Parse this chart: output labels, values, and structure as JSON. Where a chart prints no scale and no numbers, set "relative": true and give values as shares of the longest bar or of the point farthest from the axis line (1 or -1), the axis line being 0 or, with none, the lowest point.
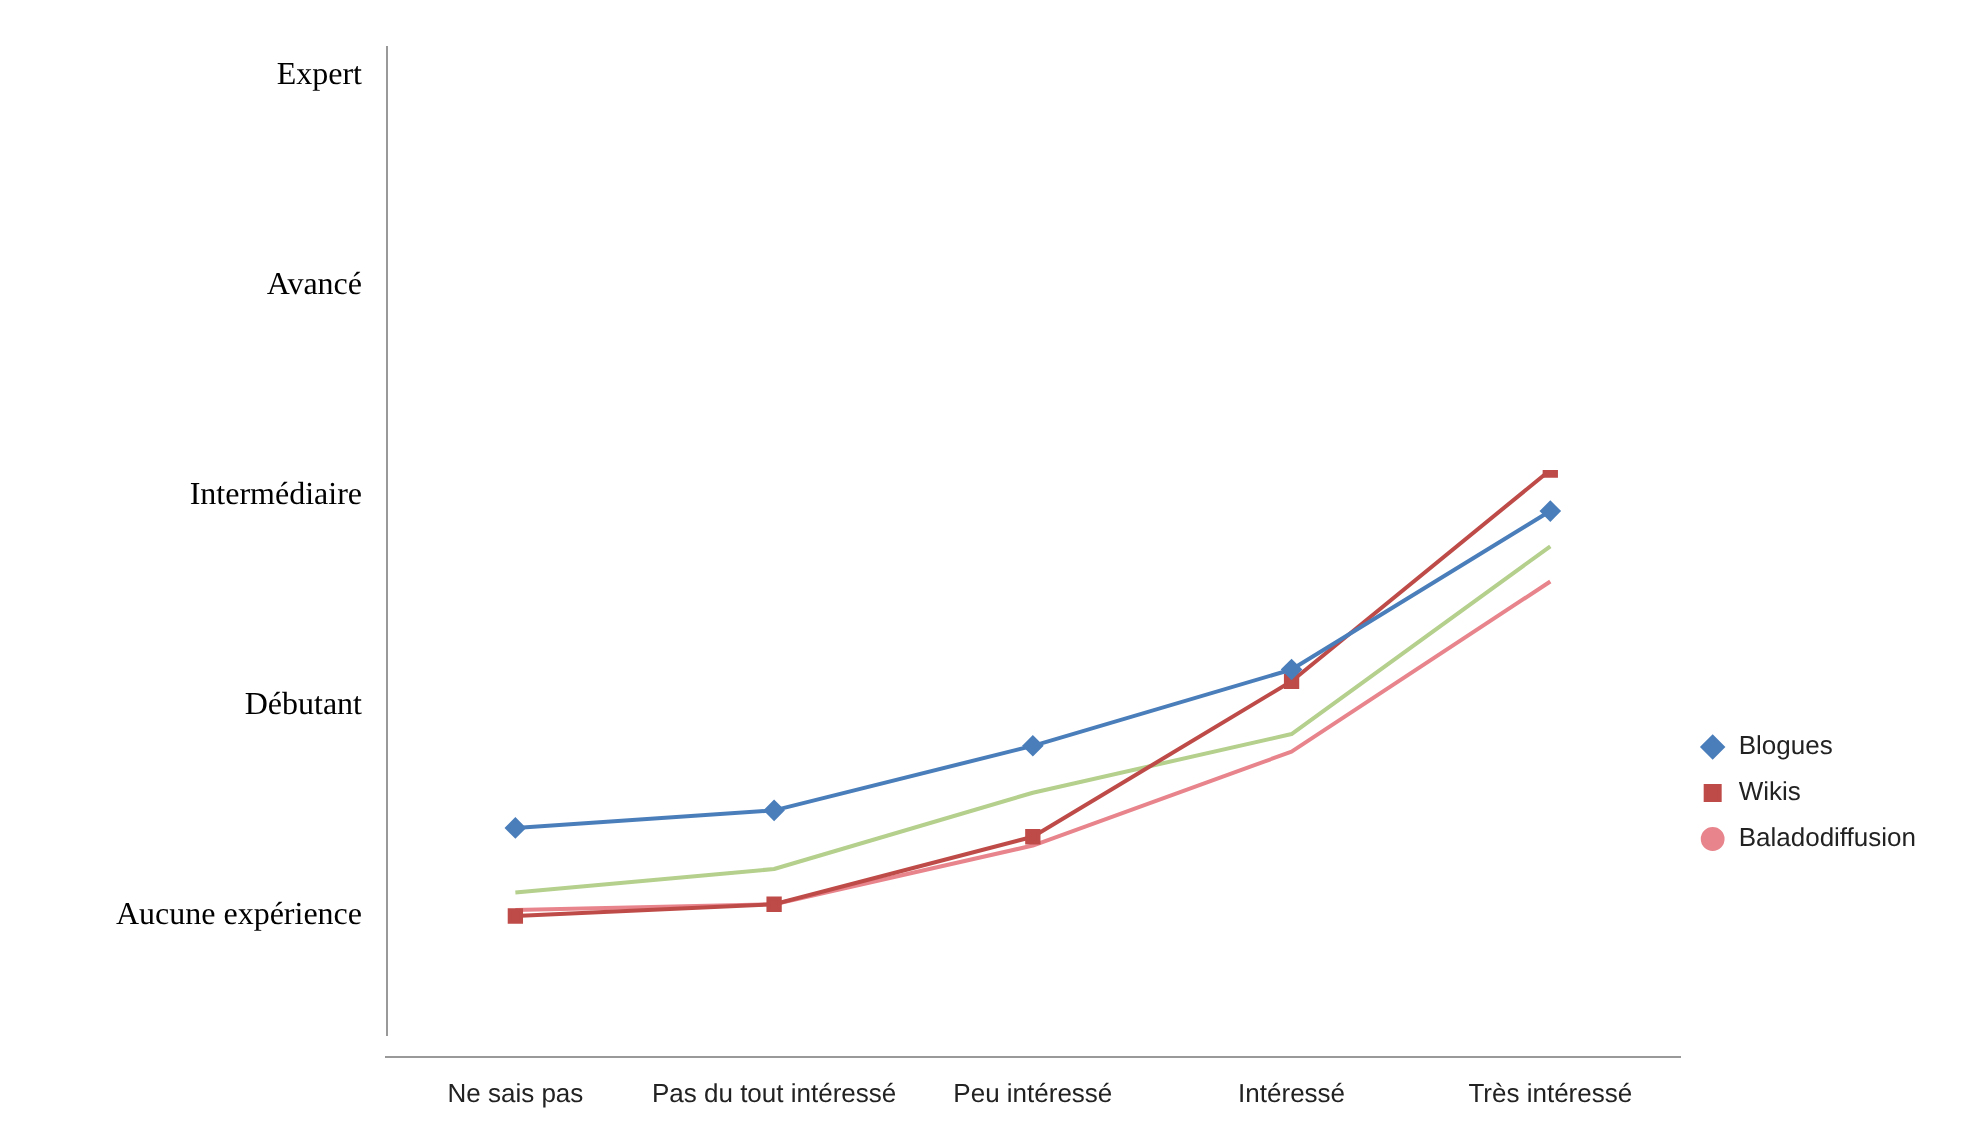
{
  "chart_data": {
    "type": "line",
    "relative": true,
    "categories": [
      "Ne sais pas",
      "Pas du tout intéressé",
      "Peu intéressé",
      "Intéressé",
      "Très intéressé"
    ],
    "series": [
      {
        "name": "Blogues",
        "color": "#4a7ebb",
        "marker": "diamond",
        "values": [
          0.39,
          0.42,
          0.53,
          0.66,
          0.93
        ]
      },
      {
        "name": "Wikis",
        "color": "#be4b48",
        "marker": "square",
        "values": [
          0.24,
          0.26,
          0.375,
          0.64,
          1
        ]
      },
      {
        "name": "Baladodiffusion",
        "color": "#e8848c",
        "marker": "none",
        "values": [
          0.25,
          0.26,
          0.36,
          0.52,
          0.81
        ]
      },
      {
        "color": "#b4d08c",
        "marker": "none",
        "values": [
          0.28,
          0.32,
          0.45,
          0.55,
          0.87
        ]
      }
    ],
    "annotations": [
      "Aucune expérience",
      "Débutant",
      "Intermédiaire",
      "Avancé",
      "Expert"
    ],
    "grid": false,
    "legend": "right"
  }
}
